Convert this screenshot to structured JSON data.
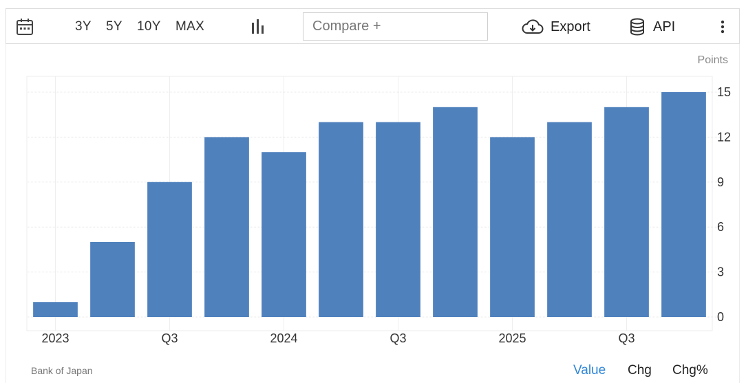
{
  "toolbar": {
    "calendar_icon": "calendar-icon",
    "ranges": [
      "3Y",
      "5Y",
      "10Y",
      "MAX"
    ],
    "chart_type_icon": "bar-chart-icon",
    "compare_placeholder": "Compare +",
    "export_label": "Export",
    "export_icon": "cloud-download-icon",
    "api_label": "API",
    "api_icon": "database-icon",
    "more_icon": "vertical-dots-icon"
  },
  "chart_data": {
    "type": "bar",
    "unit_label": "Points",
    "categories": [
      "2023 Q1",
      "2023 Q2",
      "2023 Q3",
      "2023 Q4",
      "2024 Q1",
      "2024 Q2",
      "2024 Q3",
      "2024 Q4",
      "2025 Q1",
      "2025 Q2",
      "2025 Q3",
      "2025 Q4"
    ],
    "values": [
      1,
      5,
      9,
      12,
      11,
      13,
      13,
      14,
      12,
      13,
      14,
      15
    ],
    "x_tick_labels": [
      {
        "index": 0,
        "label": "2023"
      },
      {
        "index": 2,
        "label": "Q3"
      },
      {
        "index": 4,
        "label": "2024"
      },
      {
        "index": 6,
        "label": "Q3"
      },
      {
        "index": 8,
        "label": "2025"
      },
      {
        "index": 10,
        "label": "Q3"
      }
    ],
    "y_ticks": [
      0,
      3,
      6,
      9,
      12,
      15
    ],
    "ylim": [
      0,
      15
    ],
    "y_axis_side": "right",
    "grid": true,
    "bar_color": "#4f81bd"
  },
  "footer": {
    "source": "Bank of Japan",
    "modes": [
      "Value",
      "Chg",
      "Chg%"
    ],
    "active_mode": "Value"
  }
}
